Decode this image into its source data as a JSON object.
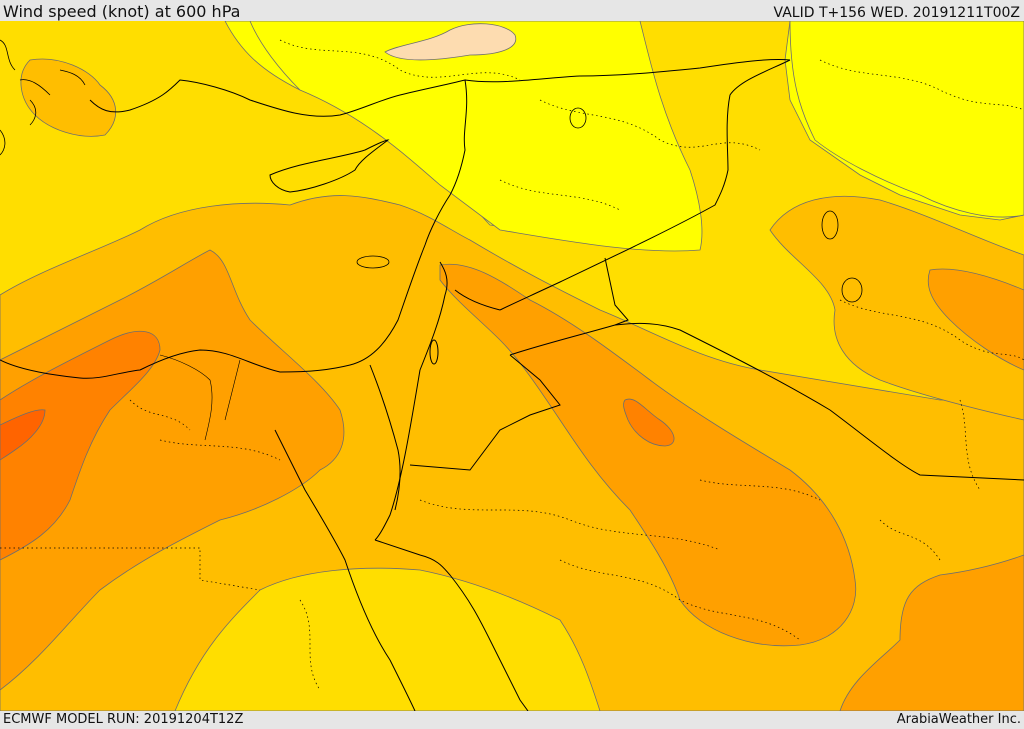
{
  "header": {
    "title": "Wind speed (knot) at 600 hPa",
    "valid": "VALID T+156 WED. 20191211T00Z"
  },
  "footer": {
    "model_run": "ECMWF MODEL RUN: 20191204T12Z",
    "credit": "ArabiaWeather Inc."
  },
  "map": {
    "region": "Eastern Mediterranean / Middle East",
    "field": "wind speed",
    "units": "knot",
    "level": "600 hPa",
    "colors": {
      "very_light": "#fddcb0",
      "yellow_bright": "#ffff00",
      "yellow": "#ffde00",
      "yellow_orange": "#ffbe00",
      "orange_light": "#ffa000",
      "orange": "#ff8200",
      "orange_dark": "#ff6400",
      "contour": "#6e6e6e",
      "coastline": "#000000",
      "border": "#000000"
    }
  }
}
